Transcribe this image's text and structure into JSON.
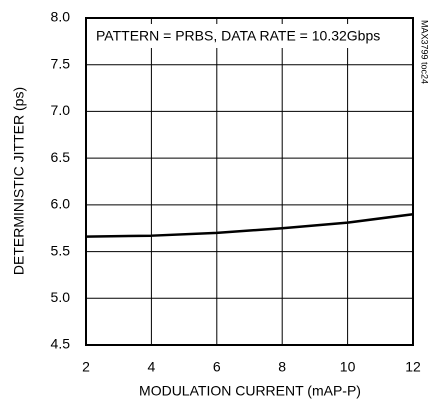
{
  "chart_data": {
    "type": "line",
    "x_label": "MODULATION CURRENT (mAP-P)",
    "y_label": "DETERMINISTIC JITTER (ps)",
    "annotations": [
      "PATTERN = PRBS, DATA RATE = 10.32Gbps",
      "MAX3799 toc24"
    ],
    "x": [
      2,
      4,
      6,
      8,
      10,
      12
    ],
    "values": [
      5.66,
      5.67,
      5.7,
      5.75,
      5.81,
      5.9
    ],
    "color": "#000000",
    "xlim": [
      2,
      12
    ],
    "xticks": [
      2,
      4,
      6,
      8,
      10,
      12
    ],
    "ylim": [
      4.5,
      8
    ],
    "yticks": [
      4.5,
      {
        "value": 5,
        "label": "5.0"
      },
      5.5,
      {
        "value": 6,
        "label": "6.0"
      },
      6.5,
      {
        "value": 7,
        "label": "7.0"
      },
      7.5,
      {
        "value": 8,
        "label": "8.0"
      }
    ],
    "grid": true
  }
}
